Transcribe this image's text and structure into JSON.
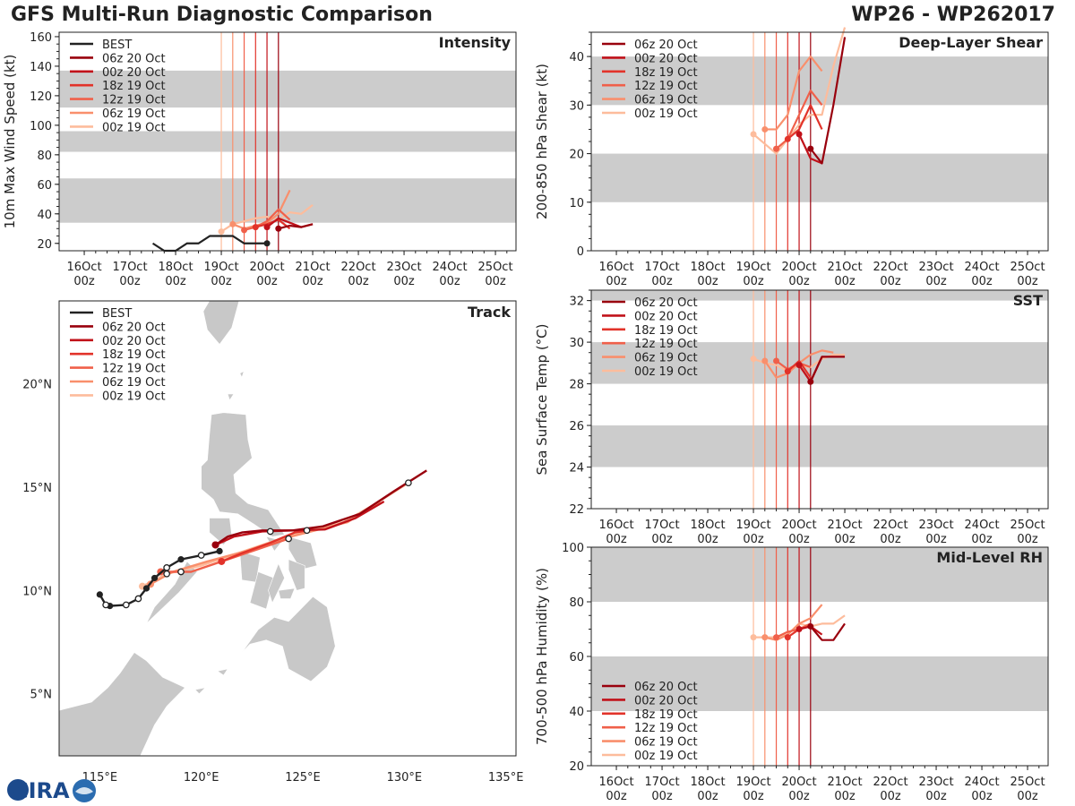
{
  "header": {
    "title": "GFS Multi-Run Diagnostic Comparison",
    "storm_id": "WP26 - WP262017"
  },
  "logo_text": "CIRA",
  "colors": {
    "best": "#222222",
    "runs": [
      "#99000d",
      "#c1121a",
      "#e2332a",
      "#f0604a",
      "#f98f6c",
      "#fdbc9c"
    ],
    "shade": "#cccccc",
    "land": "#c8c8c8"
  },
  "time_axis": {
    "ticks": [
      {
        "day": "16Oct",
        "hour": "00z"
      },
      {
        "day": "17Oct",
        "hour": "00z"
      },
      {
        "day": "18Oct",
        "hour": "00z"
      },
      {
        "day": "19Oct",
        "hour": "00z"
      },
      {
        "day": "20Oct",
        "hour": "00z"
      },
      {
        "day": "21Oct",
        "hour": "00z"
      },
      {
        "day": "22Oct",
        "hour": "00z"
      },
      {
        "day": "23Oct",
        "hour": "00z"
      },
      {
        "day": "24Oct",
        "hour": "00z"
      },
      {
        "day": "25Oct",
        "hour": "00z"
      }
    ],
    "range_days": [
      -0.55,
      9.45
    ]
  },
  "runs": [
    {
      "label": "06z 20 Oct",
      "t0": 4.25
    },
    {
      "label": "00z 20 Oct",
      "t0": 4.0
    },
    {
      "label": "18z 19 Oct",
      "t0": 3.75
    },
    {
      "label": "12z 19 Oct",
      "t0": 3.5
    },
    {
      "label": "06z 19 Oct",
      "t0": 3.25
    },
    {
      "label": "00z 19 Oct",
      "t0": 3.0
    }
  ],
  "chart_data": [
    {
      "type": "line",
      "title": "Intensity",
      "ylabel": "10m Max Wind Speed (kt)",
      "ylim": [
        15,
        163
      ],
      "yticks": [
        20,
        40,
        60,
        80,
        100,
        120,
        140,
        160
      ],
      "shade_bands": [
        [
          34,
          64
        ],
        [
          82,
          96
        ],
        [
          112,
          137
        ]
      ],
      "legend": [
        "BEST",
        "06z 20 Oct",
        "00z 20 Oct",
        "18z 19 Oct",
        "12z 19 Oct",
        "06z 19 Oct",
        "00z 19 Oct"
      ],
      "best": {
        "t": [
          1.5,
          1.75,
          2.0,
          2.25,
          2.5,
          2.75,
          3.0,
          3.25,
          3.5,
          3.75,
          4.0
        ],
        "v": [
          20,
          15,
          15,
          20,
          20,
          25,
          25,
          25,
          20,
          20,
          20
        ]
      },
      "series": [
        {
          "name": "06z 20 Oct",
          "t": [
            4.25,
            4.5,
            4.75,
            5.0
          ],
          "v": [
            30,
            32,
            31,
            33
          ]
        },
        {
          "name": "00z 20 Oct",
          "t": [
            4.0,
            4.25,
            4.5,
            4.75,
            5.0
          ],
          "v": [
            31,
            37,
            34,
            31,
            33
          ]
        },
        {
          "name": "18z 19 Oct",
          "t": [
            3.75,
            4.0,
            4.25,
            4.5
          ],
          "v": [
            31,
            33,
            36,
            30
          ]
        },
        {
          "name": "12z 19 Oct",
          "t": [
            3.5,
            3.75,
            4.0,
            4.25,
            4.5
          ],
          "v": [
            29,
            31,
            35,
            43,
            36
          ]
        },
        {
          "name": "06z 19 Oct",
          "t": [
            3.25,
            3.5,
            3.75,
            4.0,
            4.25,
            4.5
          ],
          "v": [
            33,
            30,
            32,
            34,
            40,
            56
          ]
        },
        {
          "name": "00z 19 Oct",
          "t": [
            3.0,
            3.25,
            3.5,
            3.75,
            4.0,
            4.25,
            4.5,
            4.75,
            5.0
          ],
          "v": [
            28,
            33,
            35,
            37,
            38,
            36,
            41,
            40,
            46
          ]
        }
      ]
    },
    {
      "type": "line",
      "title": "Deep-Layer Shear",
      "ylabel": "200-850 hPa Shear (kt)",
      "ylim": [
        0,
        45
      ],
      "yticks": [
        0,
        10,
        20,
        30,
        40
      ],
      "shade_bands": [
        [
          10,
          20
        ],
        [
          30,
          40
        ]
      ],
      "legend": [
        "06z 20 Oct",
        "00z 20 Oct",
        "18z 19 Oct",
        "12z 19 Oct",
        "06z 19 Oct",
        "00z 19 Oct"
      ],
      "series": [
        {
          "name": "06z 20 Oct",
          "t": [
            4.25,
            4.5,
            4.75,
            5.0
          ],
          "v": [
            21,
            18,
            30,
            44
          ]
        },
        {
          "name": "00z 20 Oct",
          "t": [
            4.0,
            4.25,
            4.5
          ],
          "v": [
            24,
            19,
            18
          ]
        },
        {
          "name": "18z 19 Oct",
          "t": [
            3.75,
            4.0,
            4.25,
            4.5
          ],
          "v": [
            23,
            25,
            30,
            25
          ]
        },
        {
          "name": "12z 19 Oct",
          "t": [
            3.5,
            3.75,
            4.0,
            4.25,
            4.5
          ],
          "v": [
            21,
            23,
            28,
            33,
            30
          ]
        },
        {
          "name": "06z 19 Oct",
          "t": [
            3.25,
            3.5,
            3.75,
            4.0,
            4.25,
            4.5
          ],
          "v": [
            25,
            25,
            28,
            37,
            40,
            37
          ]
        },
        {
          "name": "00z 19 Oct",
          "t": [
            3.0,
            3.25,
            3.5,
            3.75,
            4.0,
            4.25,
            4.5,
            4.75,
            5.0
          ],
          "v": [
            24,
            22,
            20,
            23,
            26,
            28,
            28,
            38,
            46
          ]
        }
      ]
    },
    {
      "type": "line",
      "title": "SST",
      "ylabel": "Sea Surface Temp (°C)",
      "ylim": [
        22,
        32.5
      ],
      "yticks": [
        22,
        24,
        26,
        28,
        30,
        32
      ],
      "shade_bands": [
        [
          24,
          26
        ],
        [
          28,
          30
        ],
        [
          32,
          32.5
        ]
      ],
      "legend": [
        "06z 20 Oct",
        "00z 20 Oct",
        "18z 19 Oct",
        "12z 19 Oct",
        "06z 19 Oct",
        "00z 19 Oct"
      ],
      "series": [
        {
          "name": "06z 20 Oct",
          "t": [
            4.25,
            4.5,
            4.75,
            5.0
          ],
          "v": [
            28.1,
            29.3,
            29.3,
            29.3
          ]
        },
        {
          "name": "00z 20 Oct",
          "t": [
            4.0,
            4.25,
            4.5
          ],
          "v": [
            28.9,
            28.1,
            29.3
          ]
        },
        {
          "name": "18z 19 Oct",
          "t": [
            3.75,
            4.0,
            4.25
          ],
          "v": [
            28.6,
            29.1,
            28.3
          ]
        },
        {
          "name": "12z 19 Oct",
          "t": [
            3.5,
            3.75,
            4.0,
            4.25
          ],
          "v": [
            29.1,
            28.7,
            29.0,
            28.8
          ]
        },
        {
          "name": "06z 19 Oct",
          "t": [
            3.25,
            3.5,
            3.75,
            4.0,
            4.25,
            4.5,
            4.75
          ],
          "v": [
            29.1,
            28.3,
            28.5,
            29.0,
            29.4,
            29.6,
            29.5
          ]
        },
        {
          "name": "00z 19 Oct",
          "t": [
            3.0,
            3.25,
            3.5,
            3.75,
            4.0,
            4.25,
            4.5,
            4.75,
            5.0
          ],
          "v": [
            29.2,
            29.0,
            28.9,
            28.6,
            28.9,
            28.8,
            29.2,
            29.4,
            29.4
          ]
        }
      ]
    },
    {
      "type": "line",
      "title": "Mid-Level RH",
      "ylabel": "700-500 hPa Humidity (%)",
      "ylim": [
        20,
        100
      ],
      "yticks": [
        20,
        40,
        60,
        80,
        100
      ],
      "shade_bands": [
        [
          40,
          60
        ],
        [
          80,
          100
        ]
      ],
      "legend": [
        "06z 20 Oct",
        "00z 20 Oct",
        "18z 19 Oct",
        "12z 19 Oct",
        "06z 19 Oct",
        "00z 19 Oct"
      ],
      "series": [
        {
          "name": "06z 20 Oct",
          "t": [
            4.25,
            4.5,
            4.75,
            5.0
          ],
          "v": [
            71,
            66,
            66,
            72
          ]
        },
        {
          "name": "00z 20 Oct",
          "t": [
            4.0,
            4.25,
            4.5
          ],
          "v": [
            70,
            71,
            68
          ]
        },
        {
          "name": "18z 19 Oct",
          "t": [
            3.75,
            4.0,
            4.25
          ],
          "v": [
            67,
            70,
            71
          ]
        },
        {
          "name": "12z 19 Oct",
          "t": [
            3.5,
            3.75,
            4.0,
            4.25
          ],
          "v": [
            67,
            69,
            70,
            72
          ]
        },
        {
          "name": "06z 19 Oct",
          "t": [
            3.25,
            3.5,
            3.75,
            4.0,
            4.25,
            4.5
          ],
          "v": [
            67,
            66,
            68,
            72,
            74,
            79
          ]
        },
        {
          "name": "00z 19 Oct",
          "t": [
            3.0,
            3.25,
            3.5,
            3.75,
            4.0,
            4.25,
            4.5,
            4.75,
            5.0
          ],
          "v": [
            67,
            67,
            67,
            68,
            72,
            71,
            72,
            72,
            75
          ]
        }
      ]
    },
    {
      "type": "line",
      "title": "Track",
      "xlim": [
        113,
        135.5
      ],
      "ylim": [
        2.0,
        24.0
      ],
      "xticks": [
        {
          "v": 115,
          "label": "115°E"
        },
        {
          "v": 120,
          "label": "120°E"
        },
        {
          "v": 125,
          "label": "125°E"
        },
        {
          "v": 130,
          "label": "130°E"
        },
        {
          "v": 135,
          "label": "135°E"
        }
      ],
      "yticks": [
        {
          "v": 5,
          "label": "5°N"
        },
        {
          "v": 10,
          "label": "10°N"
        },
        {
          "v": 15,
          "label": "15°N"
        },
        {
          "v": 20,
          "label": "20°N"
        }
      ],
      "legend": [
        "BEST",
        "06z 20 Oct",
        "00z 20 Oct",
        "18z 19 Oct",
        "12z 19 Oct",
        "06z 19 Oct",
        "00z 19 Oct"
      ],
      "best": {
        "lon": [
          120.9,
          120.0,
          119.0,
          118.3,
          117.7,
          117.3,
          116.9,
          116.3,
          115.5,
          115.3,
          115.0
        ],
        "lat": [
          11.9,
          11.7,
          11.5,
          11.1,
          10.6,
          10.1,
          9.6,
          9.3,
          9.25,
          9.3,
          9.8
        ],
        "closed": [
          0,
          2,
          4,
          5,
          8,
          10
        ],
        "open": [
          1,
          3,
          6,
          7,
          9
        ]
      },
      "series": [
        {
          "name": "06z 20 Oct",
          "lon": [
            120.7,
            121.3,
            122.0,
            123.0,
            124.5,
            126.0,
            127.8,
            129.5,
            131.1
          ],
          "lat": [
            12.2,
            12.6,
            12.8,
            12.9,
            12.9,
            13.1,
            13.7,
            14.8,
            15.8
          ]
        },
        {
          "name": "00z 20 Oct",
          "lon": [
            120.7,
            121.6,
            123.0,
            124.5,
            126.1,
            127.6,
            129.0
          ],
          "lat": [
            12.2,
            12.6,
            12.85,
            12.9,
            12.95,
            13.5,
            14.3
          ]
        },
        {
          "name": "18z 19 Oct",
          "lon": [
            121.0,
            122.0,
            123.4,
            124.6,
            125.3
          ],
          "lat": [
            11.4,
            11.8,
            12.3,
            12.8,
            12.9
          ]
        },
        {
          "name": "12z 19 Oct",
          "lon": [
            118.0,
            119.5,
            121.0,
            122.8,
            124.3
          ],
          "lat": [
            10.9,
            10.9,
            11.4,
            12.0,
            12.5
          ]
        },
        {
          "name": "06z 19 Oct",
          "lon": [
            117.5,
            118.6,
            120.3,
            122.2,
            124.0,
            125.6,
            127.2,
            128.8
          ],
          "lat": [
            10.3,
            10.9,
            11.4,
            11.9,
            12.5,
            12.9,
            13.3,
            14.3
          ]
        },
        {
          "name": "00z 19 Oct",
          "lon": [
            117.1,
            118.3,
            120.0,
            121.8,
            123.6,
            125.2,
            127.0,
            128.6,
            130.2
          ],
          "lat": [
            10.2,
            10.8,
            11.2,
            11.8,
            12.4,
            12.9,
            13.3,
            14.2,
            15.2
          ]
        }
      ]
    }
  ]
}
